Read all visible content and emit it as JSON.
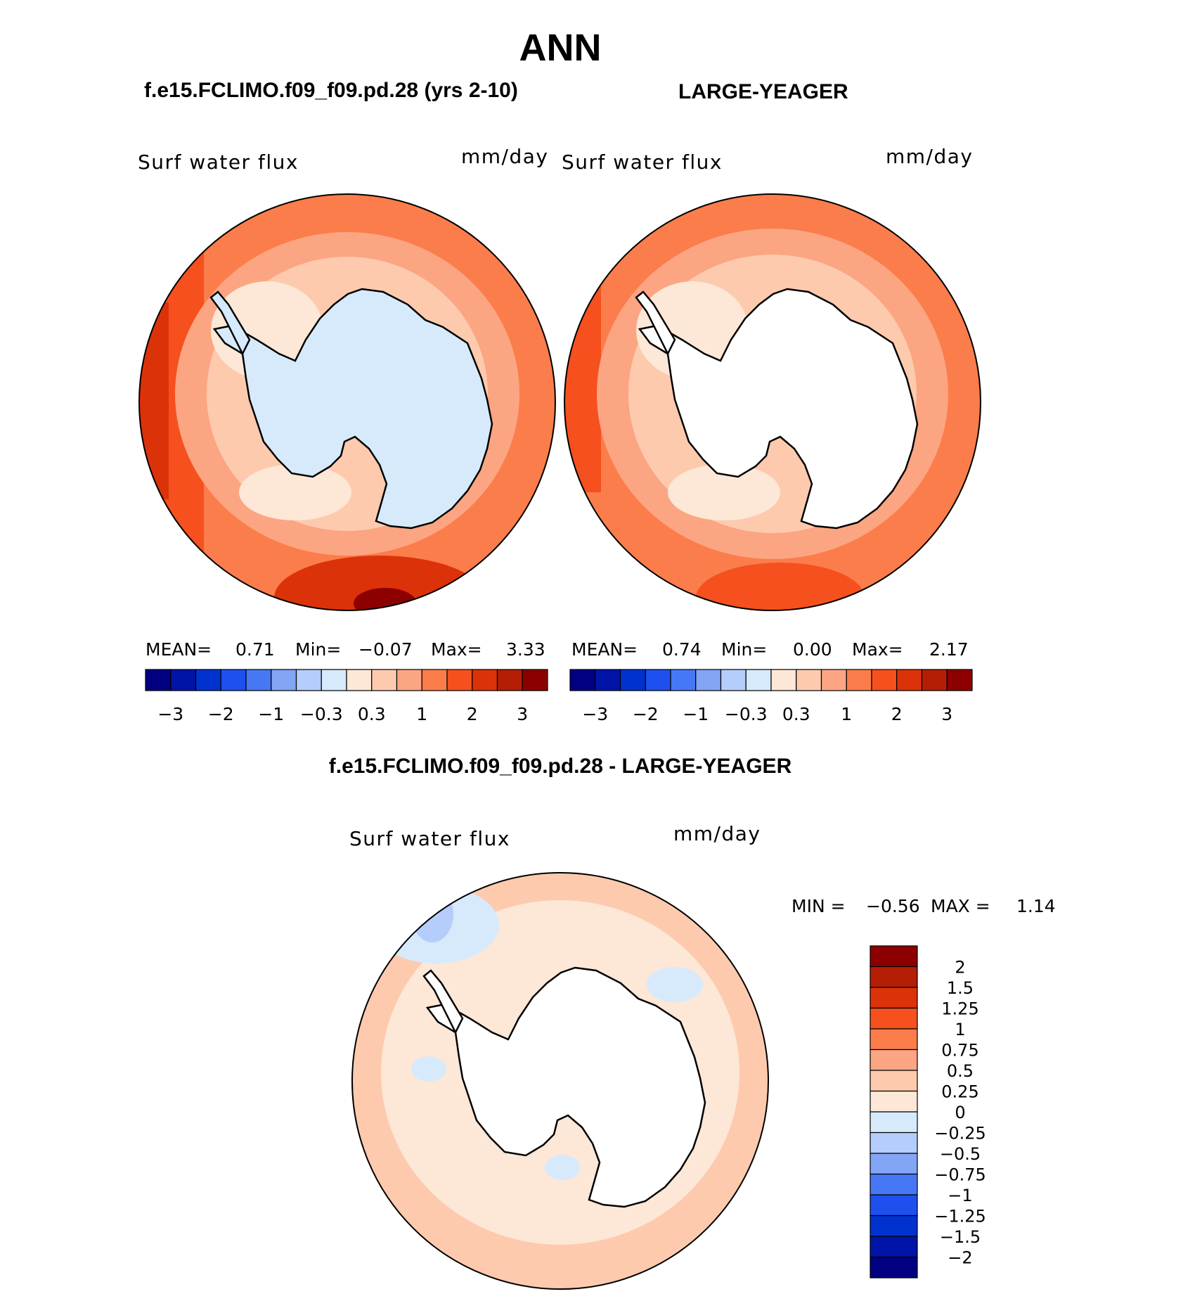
{
  "title": "ANN",
  "panels": [
    {
      "heading": "f.e15.FCLIMO.f09_f09.pd.28 (yrs 2-10)",
      "field_label": "Surf water flux",
      "units": "mm/day",
      "stats": {
        "mean_label": "MEAN=",
        "mean": "0.71",
        "min_label": "Min=",
        "min": "−0.07",
        "max_label": "Max=",
        "max": "3.33"
      },
      "land_fill": "#d6eafc"
    },
    {
      "heading": "LARGE-YEAGER",
      "field_label": "Surf water flux",
      "units": "mm/day",
      "stats": {
        "mean_label": "MEAN=",
        "mean": "0.74",
        "min_label": "Min=",
        "min": "0.00",
        "max_label": "Max=",
        "max": "2.17"
      },
      "land_fill": "#ffffff"
    }
  ],
  "diff_panel": {
    "heading": "f.e15.FCLIMO.f09_f09.pd.28 - LARGE-YEAGER",
    "field_label": "Surf water flux",
    "units": "mm/day",
    "stats": {
      "min_label": "MIN =",
      "min": "−0.56",
      "max_label": "MAX =",
      "max": "1.14"
    }
  },
  "colorbar_horizontal": {
    "colors": [
      "#000080",
      "#0014a8",
      "#0032d0",
      "#1e50f0",
      "#4678f5",
      "#82a5f5",
      "#b4cdfa",
      "#d6eafc",
      "#fde7d6",
      "#fdcaae",
      "#fca582",
      "#fb7d4b",
      "#f5501e",
      "#dc320a",
      "#b41e05",
      "#8c0000"
    ],
    "tick_labels": [
      "−3",
      "−2",
      "−1",
      "−0.3",
      "0.3",
      "1",
      "2",
      "3"
    ]
  },
  "colorbar_vertical": {
    "colors_top_to_bottom": [
      "#8c0000",
      "#b41e05",
      "#dc320a",
      "#f5501e",
      "#fb7d4b",
      "#fca582",
      "#fdcaae",
      "#fde7d6",
      "#d6eafc",
      "#b4cdfa",
      "#82a5f5",
      "#4678f5",
      "#1e50f0",
      "#0032d0",
      "#0014a8",
      "#000080"
    ],
    "tick_labels": [
      "2",
      "1.5",
      "1.25",
      "1",
      "0.75",
      "0.5",
      "0.25",
      "0",
      "−0.25",
      "−0.5",
      "−0.75",
      "−1",
      "−1.25",
      "−1.5",
      "−2"
    ]
  }
}
